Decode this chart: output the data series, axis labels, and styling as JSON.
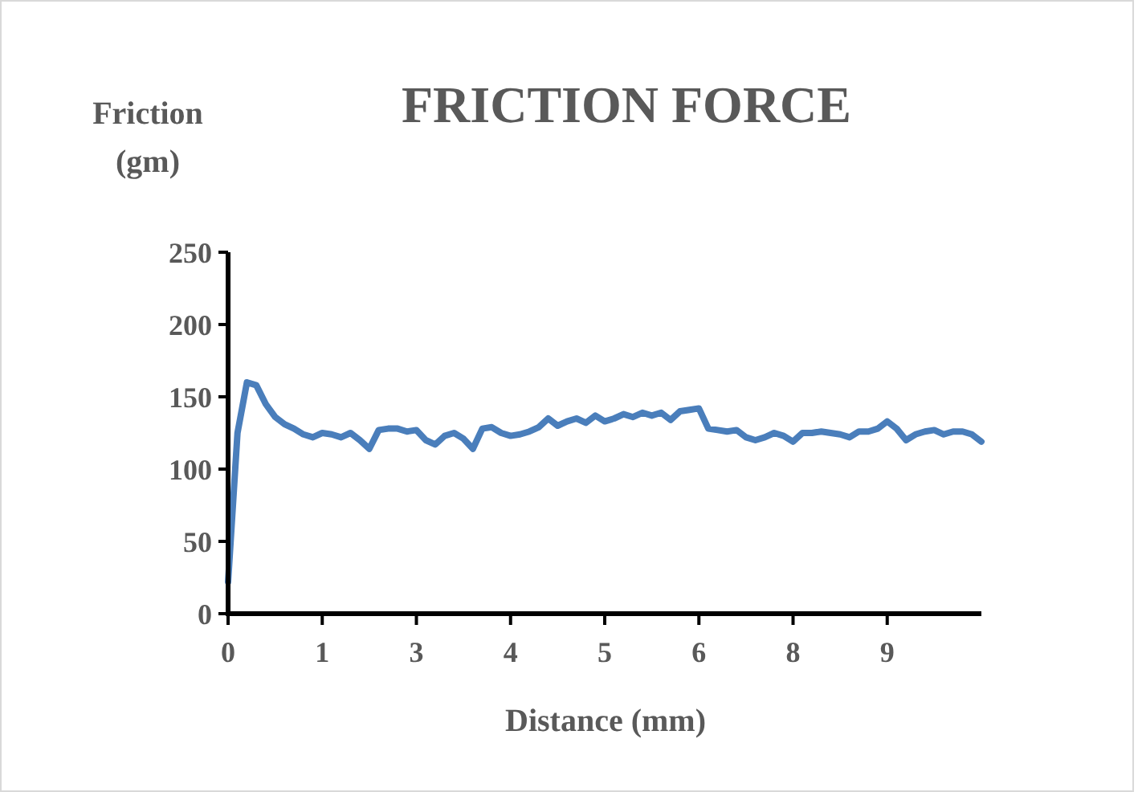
{
  "chart_data": {
    "type": "line",
    "title": "FRICTION FORCE",
    "xlabel": "Distance (mm)",
    "ylabel": "Friction (gm)",
    "categories": [
      "0",
      null,
      null,
      null,
      null,
      null,
      null,
      null,
      null,
      null,
      "1",
      null,
      null,
      null,
      null,
      null,
      null,
      null,
      null,
      null,
      "3",
      null,
      null,
      null,
      null,
      null,
      null,
      null,
      null,
      null,
      "4",
      null,
      null,
      null,
      null,
      null,
      null,
      null,
      null,
      null,
      "5",
      null,
      null,
      null,
      null,
      null,
      null,
      null,
      null,
      null,
      "6",
      null,
      null,
      null,
      null,
      null,
      null,
      null,
      null,
      null,
      "8",
      null,
      null,
      null,
      null,
      null,
      null,
      null,
      null,
      null,
      "9",
      null,
      null,
      null,
      null,
      null,
      null,
      null,
      null,
      null,
      null
    ],
    "series": [
      {
        "color": "#4a7ebb",
        "values": [
          22,
          125,
          160,
          158,
          145,
          136,
          131,
          128,
          124,
          122,
          125,
          124,
          122,
          125,
          120,
          114,
          127,
          128,
          128,
          126,
          127,
          120,
          117,
          123,
          125,
          121,
          114,
          128,
          129,
          125,
          123,
          124,
          126,
          129,
          135,
          130,
          133,
          135,
          132,
          137,
          133,
          135,
          138,
          136,
          139,
          137,
          139,
          134,
          140,
          141,
          142,
          128,
          127,
          126,
          127,
          122,
          120,
          122,
          125,
          123,
          119,
          125,
          125,
          126,
          125,
          124,
          122,
          126,
          126,
          128,
          133,
          128,
          120,
          124,
          126,
          127,
          124,
          126,
          126,
          124,
          119
        ]
      }
    ],
    "ylim": [
      0,
      250
    ],
    "yticks": [
      0,
      50,
      100,
      150,
      200,
      250
    ],
    "grid": false,
    "marker": "none",
    "line_style": "solid"
  }
}
